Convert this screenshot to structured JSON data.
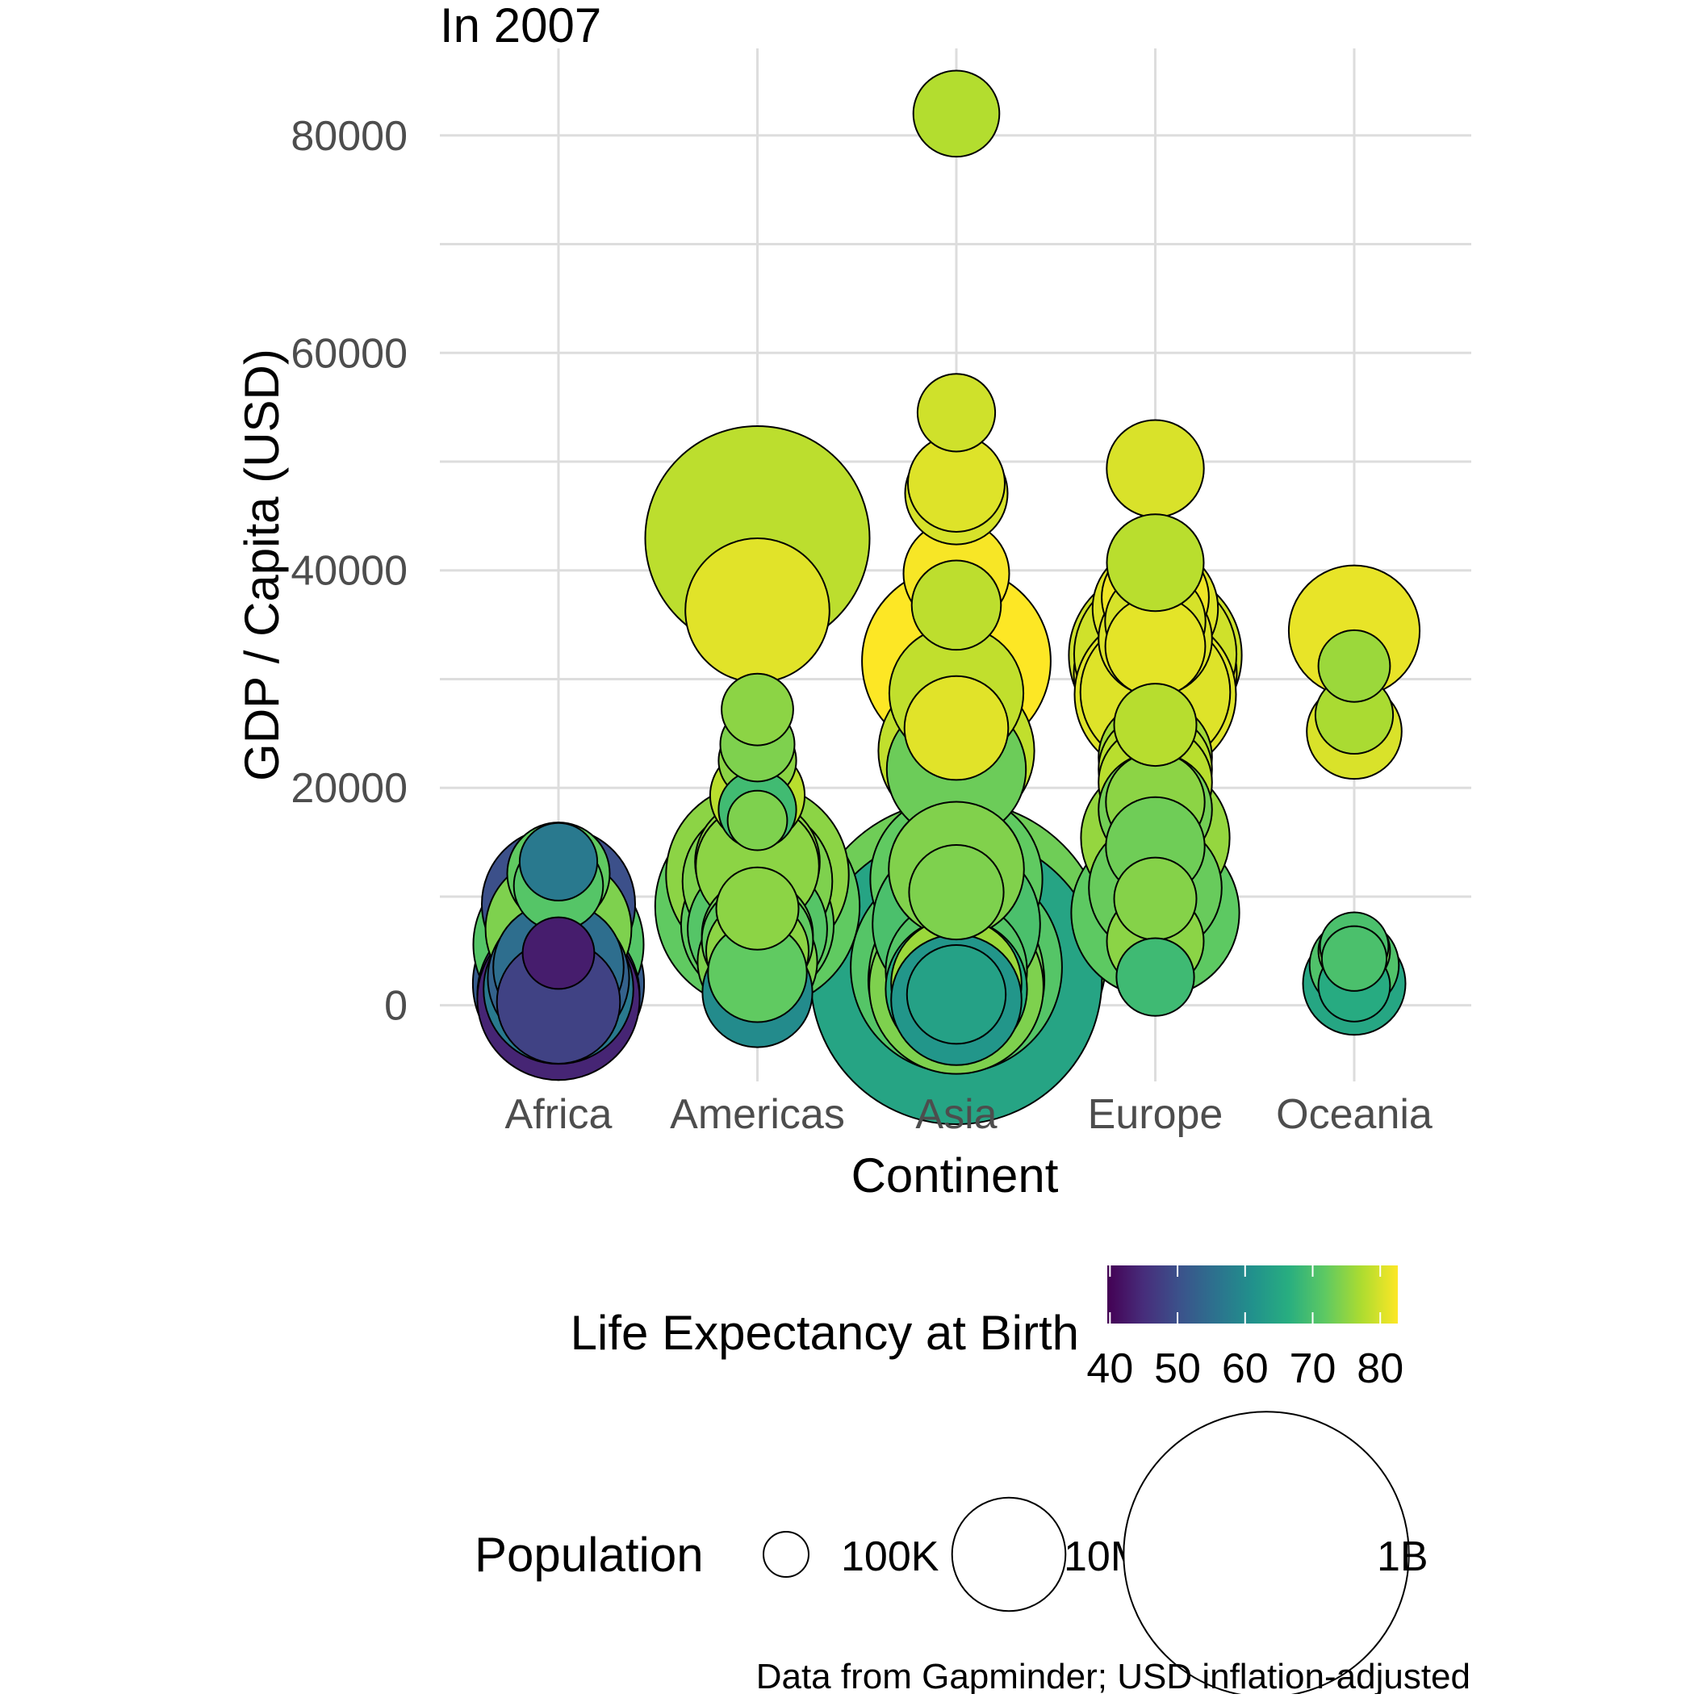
{
  "chart_data": {
    "type": "scatter",
    "subtitle": "In 2007",
    "xlabel": "Continent",
    "ylabel": "GDP / Capita (USD)",
    "caption": "Data from Gapminder; USD inflation-adjusted",
    "categories": [
      "Africa",
      "Americas",
      "Asia",
      "Europe",
      "Oceania"
    ],
    "ylim": [
      -7000,
      88000
    ],
    "yticks": [
      0,
      20000,
      40000,
      60000,
      80000
    ],
    "ytick_labels": [
      "0",
      "20000",
      "40000",
      "60000",
      "80000"
    ],
    "grid": true,
    "color_legend": {
      "title": "Life Expectancy at Birth",
      "range": [
        39.6,
        82.6
      ],
      "ticks": [
        40,
        50,
        60,
        70,
        80
      ],
      "tick_labels": [
        "40",
        "50",
        "60",
        "70",
        "80"
      ],
      "palette": "viridis"
    },
    "size_legend": {
      "title": "Population",
      "entries": [
        {
          "label": "100K",
          "population": 100000
        },
        {
          "label": "10M",
          "population": 10000000
        },
        {
          "label": "1B",
          "population": 1000000000
        }
      ]
    },
    "points": [
      {
        "continent": "Africa",
        "gdp": 13200,
        "life": 57,
        "pop": 1500000
      },
      {
        "continent": "Africa",
        "gdp": 12100,
        "life": 72,
        "pop": 6000000
      },
      {
        "continent": "Africa",
        "gdp": 11000,
        "life": 71,
        "pop": 3000000
      },
      {
        "continent": "Africa",
        "gdp": 9300,
        "life": 50,
        "pop": 45000000
      },
      {
        "continent": "Africa",
        "gdp": 7000,
        "life": 74,
        "pop": 35000000
      },
      {
        "continent": "Africa",
        "gdp": 5600,
        "life": 71,
        "pop": 76000000
      },
      {
        "continent": "Africa",
        "gdp": 4800,
        "life": 43,
        "pop": 1000000
      },
      {
        "continent": "Africa",
        "gdp": 3500,
        "life": 55,
        "pop": 20000000
      },
      {
        "continent": "Africa",
        "gdp": 2500,
        "life": 53,
        "pop": 30000000
      },
      {
        "continent": "Africa",
        "gdp": 2000,
        "life": 52,
        "pop": 78000000
      },
      {
        "continent": "Africa",
        "gdp": 1500,
        "life": 57,
        "pop": 40000000
      },
      {
        "continent": "Africa",
        "gdp": 1000,
        "life": 46,
        "pop": 60000000
      },
      {
        "continent": "Africa",
        "gdp": 600,
        "life": 44,
        "pop": 60000000
      },
      {
        "continent": "Africa",
        "gdp": 300,
        "life": 48,
        "pop": 15000000
      },
      {
        "continent": "Americas",
        "gdp": 42952,
        "life": 78.2,
        "pop": 301000000
      },
      {
        "continent": "Americas",
        "gdp": 36319,
        "life": 80.7,
        "pop": 33000000
      },
      {
        "continent": "Americas",
        "gdp": 27200,
        "life": 75,
        "pop": 1000000
      },
      {
        "continent": "Americas",
        "gdp": 24000,
        "life": 74,
        "pop": 1200000
      },
      {
        "continent": "Americas",
        "gdp": 22500,
        "life": 75,
        "pop": 1500000
      },
      {
        "continent": "Americas",
        "gdp": 19300,
        "life": 78,
        "pop": 4000000
      },
      {
        "continent": "Americas",
        "gdp": 18000,
        "life": 69,
        "pop": 1500000
      },
      {
        "continent": "Americas",
        "gdp": 17000,
        "life": 74,
        "pop": 400000
      },
      {
        "continent": "Americas",
        "gdp": 13200,
        "life": 75,
        "pop": 16000000
      },
      {
        "continent": "Americas",
        "gdp": 12800,
        "life": 75,
        "pop": 15000000
      },
      {
        "continent": "Americas",
        "gdp": 12000,
        "life": 75,
        "pop": 108000000
      },
      {
        "continent": "Americas",
        "gdp": 11400,
        "life": 74,
        "pop": 40000000
      },
      {
        "continent": "Americas",
        "gdp": 9100,
        "life": 72,
        "pop": 190000000
      },
      {
        "continent": "Americas",
        "gdp": 8900,
        "life": 75,
        "pop": 2000000
      },
      {
        "continent": "Americas",
        "gdp": 7400,
        "life": 72,
        "pop": 44000000
      },
      {
        "continent": "Americas",
        "gdp": 7000,
        "life": 71,
        "pop": 28000000
      },
      {
        "continent": "Americas",
        "gdp": 6500,
        "life": 73,
        "pop": 9000000
      },
      {
        "continent": "Americas",
        "gdp": 6000,
        "life": 72,
        "pop": 9000000
      },
      {
        "continent": "Americas",
        "gdp": 5000,
        "life": 75,
        "pop": 6000000
      },
      {
        "continent": "Americas",
        "gdp": 4000,
        "life": 74,
        "pop": 13000000
      },
      {
        "continent": "Americas",
        "gdp": 3000,
        "life": 72,
        "pop": 5000000
      },
      {
        "continent": "Americas",
        "gdp": 1200,
        "life": 60,
        "pop": 8500000
      },
      {
        "continent": "Asia",
        "gdp": 82000,
        "life": 77.6,
        "pop": 2500000
      },
      {
        "continent": "Asia",
        "gdp": 54500,
        "life": 79.5,
        "pop": 1500000
      },
      {
        "continent": "Asia",
        "gdp": 48000,
        "life": 80.5,
        "pop": 4500000
      },
      {
        "continent": "Asia",
        "gdp": 47100,
        "life": 80.0,
        "pop": 6000000
      },
      {
        "continent": "Asia",
        "gdp": 39700,
        "life": 82.2,
        "pop": 7000000
      },
      {
        "continent": "Asia",
        "gdp": 36800,
        "life": 78.3,
        "pop": 3000000
      },
      {
        "continent": "Asia",
        "gdp": 31656,
        "life": 82.6,
        "pop": 127000000
      },
      {
        "continent": "Asia",
        "gdp": 28700,
        "life": 78.6,
        "pop": 23000000
      },
      {
        "continent": "Asia",
        "gdp": 25500,
        "life": 80.7,
        "pop": 6400000
      },
      {
        "continent": "Asia",
        "gdp": 23400,
        "life": 78.6,
        "pop": 49000000
      },
      {
        "continent": "Asia",
        "gdp": 21700,
        "life": 72.8,
        "pop": 27600000
      },
      {
        "continent": "Asia",
        "gdp": 12500,
        "life": 74.2,
        "pop": 24000000
      },
      {
        "continent": "Asia",
        "gdp": 11600,
        "life": 72,
        "pop": 80000000
      },
      {
        "continent": "Asia",
        "gdp": 10400,
        "life": 74,
        "pop": 4000000
      },
      {
        "continent": "Asia",
        "gdp": 7500,
        "life": 70,
        "pop": 70000000
      },
      {
        "continent": "Asia",
        "gdp": 4959,
        "life": 73.0,
        "pop": 1318683096
      },
      {
        "continent": "Asia",
        "gdp": 3500,
        "life": 71,
        "pop": 223000000
      },
      {
        "continent": "Asia",
        "gdp": 3200,
        "life": 71,
        "pop": 30000000
      },
      {
        "continent": "Asia",
        "gdp": 2800,
        "life": 73,
        "pop": 86000000
      },
      {
        "continent": "Asia",
        "gdp": 2452,
        "life": 64.7,
        "pop": 1110396331
      },
      {
        "continent": "Asia",
        "gdp": 2300,
        "life": 74,
        "pop": 90000000
      },
      {
        "continent": "Asia",
        "gdp": 2000,
        "life": 76,
        "pop": 20000000
      },
      {
        "continent": "Asia",
        "gdp": 1700,
        "life": 74,
        "pop": 85000000
      },
      {
        "continent": "Asia",
        "gdp": 1500,
        "life": 66,
        "pop": 30000000
      },
      {
        "continent": "Asia",
        "gdp": 1000,
        "life": 64,
        "pop": 5000000
      },
      {
        "continent": "Asia",
        "gdp": 500,
        "life": 62,
        "pop": 20000000
      },
      {
        "continent": "Europe",
        "gdp": 49357,
        "life": 80.2,
        "pop": 4600000
      },
      {
        "continent": "Europe",
        "gdp": 40700,
        "life": 78,
        "pop": 4500000
      },
      {
        "continent": "Europe",
        "gdp": 37500,
        "life": 81.7,
        "pop": 7500000
      },
      {
        "continent": "Europe",
        "gdp": 36500,
        "life": 80.5,
        "pop": 16500000
      },
      {
        "continent": "Europe",
        "gdp": 35300,
        "life": 80,
        "pop": 5400000
      },
      {
        "continent": "Europe",
        "gdp": 33700,
        "life": 80.3,
        "pop": 10000000
      },
      {
        "continent": "Europe",
        "gdp": 33000,
        "life": 80.9,
        "pop": 5300000
      },
      {
        "continent": "Europe",
        "gdp": 32300,
        "life": 79.5,
        "pop": 60000000
      },
      {
        "continent": "Europe",
        "gdp": 32200,
        "life": 79.3,
        "pop": 82000000
      },
      {
        "continent": "Europe",
        "gdp": 30500,
        "life": 80.6,
        "pop": 61000000
      },
      {
        "continent": "Europe",
        "gdp": 28800,
        "life": 80.5,
        "pop": 40000000
      },
      {
        "continent": "Europe",
        "gdp": 28600,
        "life": 80.5,
        "pop": 58000000
      },
      {
        "continent": "Europe",
        "gdp": 25800,
        "life": 77.9,
        "pop": 2000000
      },
      {
        "continent": "Europe",
        "gdp": 22800,
        "life": 76.5,
        "pop": 10000000
      },
      {
        "continent": "Europe",
        "gdp": 21700,
        "life": 78,
        "pop": 10000000
      },
      {
        "continent": "Europe",
        "gdp": 20500,
        "life": 78,
        "pop": 10000000
      },
      {
        "continent": "Europe",
        "gdp": 18700,
        "life": 75,
        "pop": 5000000
      },
      {
        "continent": "Europe",
        "gdp": 18000,
        "life": 73.3,
        "pop": 10000000
      },
      {
        "continent": "Europe",
        "gdp": 15400,
        "life": 75.6,
        "pop": 38500000
      },
      {
        "continent": "Europe",
        "gdp": 14600,
        "life": 73,
        "pop": 5000000
      },
      {
        "continent": "Europe",
        "gdp": 10800,
        "life": 72.5,
        "pop": 22000000
      },
      {
        "continent": "Europe",
        "gdp": 9800,
        "life": 74.5,
        "pop": 2000000
      },
      {
        "continent": "Europe",
        "gdp": 8500,
        "life": 71.8,
        "pop": 71000000
      },
      {
        "continent": "Europe",
        "gdp": 5900,
        "life": 74.9,
        "pop": 4500000
      },
      {
        "continent": "Europe",
        "gdp": 2600,
        "life": 68.8,
        "pop": 1500000
      },
      {
        "continent": "Oceania",
        "gdp": 34435,
        "life": 81.2,
        "pop": 20400000
      },
      {
        "continent": "Oceania",
        "gdp": 31200,
        "life": 76,
        "pop": 1000000
      },
      {
        "continent": "Oceania",
        "gdp": 26700,
        "life": 77,
        "pop": 1500000
      },
      {
        "continent": "Oceania",
        "gdp": 25185,
        "life": 80.2,
        "pop": 4100000
      },
      {
        "continent": "Oceania",
        "gdp": 5400,
        "life": 70,
        "pop": 800000
      },
      {
        "continent": "Oceania",
        "gdp": 5000,
        "life": 73,
        "pop": 1000000
      },
      {
        "continent": "Oceania",
        "gdp": 4300,
        "life": 70,
        "pop": 600000
      },
      {
        "continent": "Oceania",
        "gdp": 3700,
        "life": 70.5,
        "pop": 3000000
      },
      {
        "continent": "Oceania",
        "gdp": 2000,
        "life": 65,
        "pop": 6000000
      },
      {
        "continent": "Oceania",
        "gdp": 1800,
        "life": 66,
        "pop": 1000000
      }
    ]
  }
}
